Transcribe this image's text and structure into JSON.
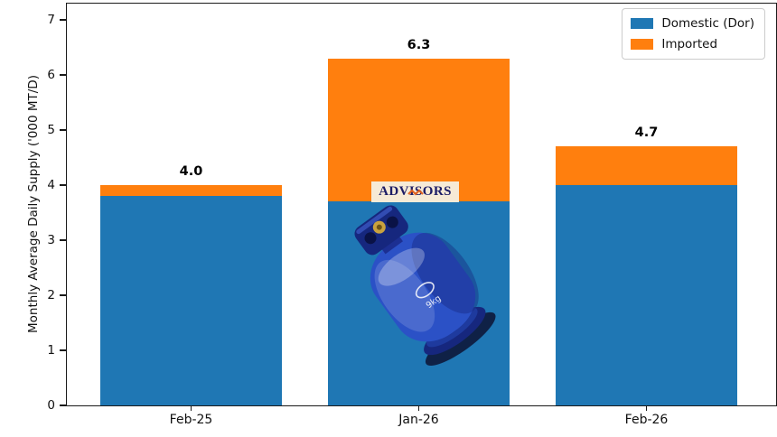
{
  "figure": {
    "background": "#ffffff",
    "axis_color": "#1a1a1a"
  },
  "chart_data": {
    "type": "bar",
    "stacked": true,
    "categories": [
      "Feb-25",
      "Jan-26",
      "Feb-26"
    ],
    "series": [
      {
        "name": "Domestic (Dor)",
        "color": "#1f77b4",
        "values": [
          3.8,
          3.7,
          4.0
        ]
      },
      {
        "name": "Imported",
        "color": "#ff7f0e",
        "values": [
          0.2,
          2.6,
          0.7
        ]
      }
    ],
    "totals": [
      "4.0",
      "6.3",
      "4.7"
    ],
    "title": "",
    "xlabel": "",
    "ylabel": "Monthly Average Daily Supply ('000 MT/D)",
    "ylim": [
      0,
      7.3
    ],
    "yticks": [
      0,
      1,
      2,
      3,
      4,
      5,
      6,
      7
    ],
    "legend_position": "upper right",
    "grid": false
  },
  "watermark": {
    "text": "ADVISORS",
    "text_color": "#1c1c66",
    "background": "#f6ead6",
    "accent_color": "#e4611c"
  },
  "overlay": {
    "description": "blue LPG gas cylinder photo, tilted",
    "cylinder_label": "9kg",
    "cylinder_color": "#2b51c6"
  }
}
